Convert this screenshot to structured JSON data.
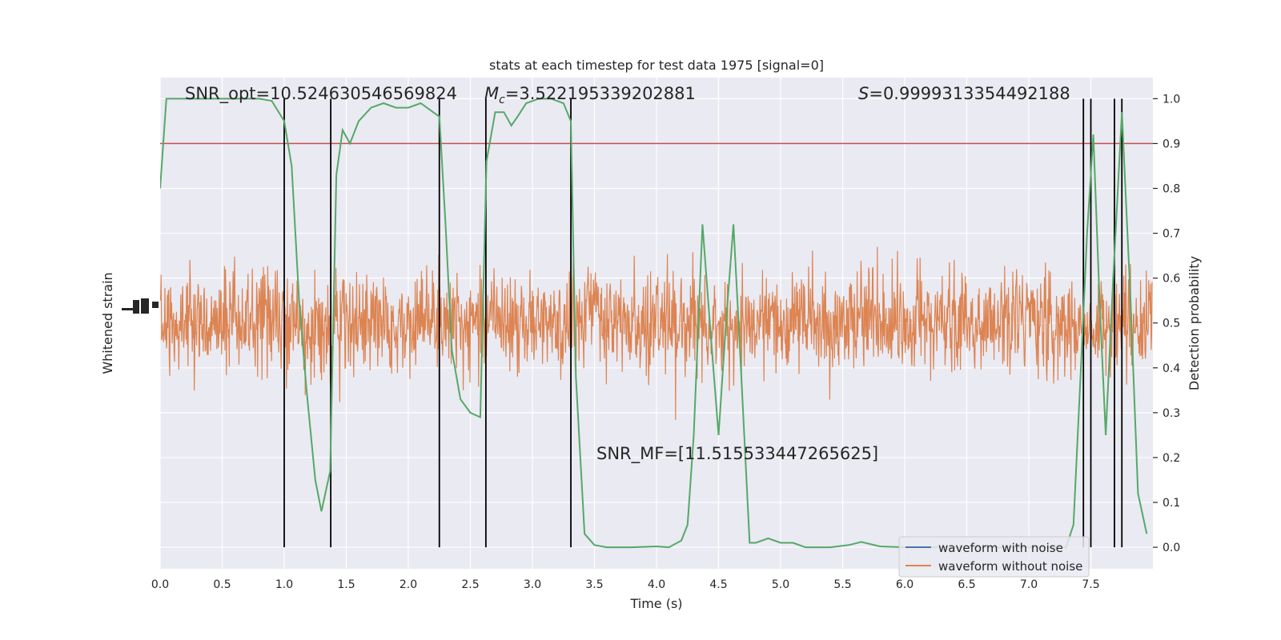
{
  "chart_data": {
    "type": "line",
    "title": "stats at each timestep for test data 1975 [signal=0]",
    "xlabel": "Time (s)",
    "ylabel_left": "Whitened strain",
    "ylabel_right": "Detection probability",
    "xlim": [
      0,
      8
    ],
    "ylim_right": [
      -0.048,
      1.047
    ],
    "x_ticks": [
      0.0,
      0.5,
      1.0,
      1.5,
      2.0,
      2.5,
      3.0,
      3.5,
      4.0,
      4.5,
      5.0,
      5.5,
      6.0,
      6.5,
      7.0,
      7.5
    ],
    "x_tick_labels": [
      "0.0",
      "0.5",
      "1.0",
      "1.5",
      "2.0",
      "2.5",
      "3.0",
      "3.5",
      "4.0",
      "4.5",
      "5.0",
      "5.5",
      "6.0",
      "6.5",
      "7.0",
      "7.5"
    ],
    "y_right_ticks": [
      0.0,
      0.1,
      0.2,
      0.3,
      0.4,
      0.5,
      0.6,
      0.7,
      0.8,
      0.9,
      1.0
    ],
    "y_right_tick_labels": [
      "0.0",
      "0.1",
      "0.2",
      "0.3",
      "0.4",
      "0.5",
      "0.6",
      "0.7",
      "0.8",
      "0.9",
      "1.0"
    ],
    "grid": true,
    "legend_position": "bottom-right",
    "annotations": {
      "snr_opt": "SNR_opt=10.524630546569824",
      "mc_symbol": "M",
      "mc_sub": "c",
      "mc_value": "=3.522195339202881",
      "s_symbol": "S",
      "s_value": "=0.9999313354492188",
      "snr_mf": "SNR_MF=[11.515533447265625]"
    },
    "threshold": 0.9,
    "vertical_lines": [
      1.0,
      1.375,
      2.25,
      2.625,
      3.31,
      7.44,
      7.5,
      7.69,
      7.75
    ],
    "series": [
      {
        "name": "waveform with noise",
        "color": "#4c72b0"
      },
      {
        "name": "waveform without noise",
        "color": "#dd8452"
      }
    ],
    "probability": {
      "color": "#55a868",
      "points": [
        [
          0.0,
          0.8
        ],
        [
          0.05,
          1.0
        ],
        [
          0.1,
          1.0
        ],
        [
          0.2,
          1.0
        ],
        [
          0.3,
          1.0
        ],
        [
          0.4,
          1.0
        ],
        [
          0.5,
          1.0
        ],
        [
          0.6,
          1.0
        ],
        [
          0.7,
          1.0
        ],
        [
          0.8,
          1.0
        ],
        [
          0.9,
          0.995
        ],
        [
          1.0,
          0.95
        ],
        [
          1.06,
          0.85
        ],
        [
          1.12,
          0.55
        ],
        [
          1.18,
          0.35
        ],
        [
          1.25,
          0.15
        ],
        [
          1.3,
          0.08
        ],
        [
          1.37,
          0.17
        ],
        [
          1.42,
          0.83
        ],
        [
          1.47,
          0.93
        ],
        [
          1.53,
          0.9
        ],
        [
          1.6,
          0.95
        ],
        [
          1.7,
          0.98
        ],
        [
          1.8,
          0.99
        ],
        [
          1.9,
          0.98
        ],
        [
          2.0,
          0.98
        ],
        [
          2.1,
          0.99
        ],
        [
          2.2,
          0.97
        ],
        [
          2.25,
          0.96
        ],
        [
          2.3,
          0.72
        ],
        [
          2.35,
          0.44
        ],
        [
          2.42,
          0.33
        ],
        [
          2.5,
          0.3
        ],
        [
          2.58,
          0.29
        ],
        [
          2.63,
          0.86
        ],
        [
          2.7,
          0.97
        ],
        [
          2.77,
          0.97
        ],
        [
          2.83,
          0.94
        ],
        [
          2.88,
          0.96
        ],
        [
          2.95,
          0.99
        ],
        [
          3.05,
          1.0
        ],
        [
          3.15,
          1.0
        ],
        [
          3.25,
          0.99
        ],
        [
          3.31,
          0.95
        ],
        [
          3.35,
          0.38
        ],
        [
          3.42,
          0.03
        ],
        [
          3.5,
          0.005
        ],
        [
          3.6,
          0.0
        ],
        [
          3.8,
          0.0
        ],
        [
          4.0,
          0.002
        ],
        [
          4.1,
          0.0
        ],
        [
          4.2,
          0.015
        ],
        [
          4.25,
          0.05
        ],
        [
          4.3,
          0.25
        ],
        [
          4.37,
          0.72
        ],
        [
          4.43,
          0.5
        ],
        [
          4.5,
          0.25
        ],
        [
          4.56,
          0.5
        ],
        [
          4.62,
          0.72
        ],
        [
          4.68,
          0.4
        ],
        [
          4.75,
          0.01
        ],
        [
          4.8,
          0.01
        ],
        [
          4.9,
          0.02
        ],
        [
          5.0,
          0.01
        ],
        [
          5.1,
          0.01
        ],
        [
          5.2,
          0.0
        ],
        [
          5.4,
          0.0
        ],
        [
          5.55,
          0.005
        ],
        [
          5.65,
          0.012
        ],
        [
          5.8,
          0.002
        ],
        [
          6.0,
          0.0
        ],
        [
          6.5,
          0.0
        ],
        [
          7.0,
          0.0
        ],
        [
          7.3,
          0.0
        ],
        [
          7.36,
          0.05
        ],
        [
          7.42,
          0.4
        ],
        [
          7.47,
          0.7
        ],
        [
          7.52,
          0.92
        ],
        [
          7.57,
          0.55
        ],
        [
          7.62,
          0.25
        ],
        [
          7.68,
          0.6
        ],
        [
          7.75,
          0.97
        ],
        [
          7.82,
          0.55
        ],
        [
          7.88,
          0.12
        ],
        [
          7.95,
          0.03
        ]
      ]
    }
  }
}
